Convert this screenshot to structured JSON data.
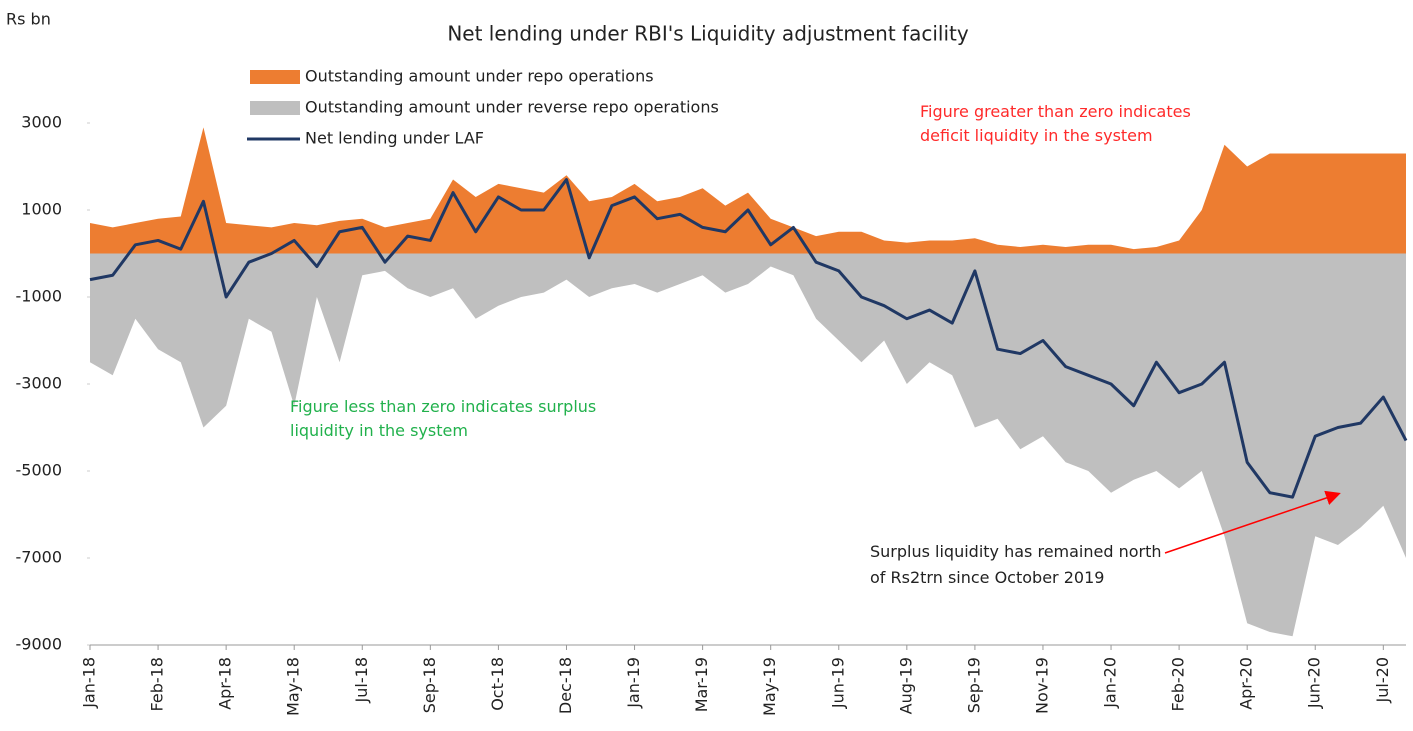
{
  "chart_data": {
    "type": "area-line",
    "title": "Net lending under RBI's Liquidity  adjustment facility",
    "y_label": "Rs bn",
    "categories": [
      "Jan-18",
      null,
      null,
      "Feb-18",
      null,
      null,
      "Apr-18",
      null,
      null,
      "May-18",
      null,
      null,
      "Jul-18",
      null,
      null,
      "Sep-18",
      null,
      null,
      "Oct-18",
      null,
      null,
      "Dec-18",
      null,
      null,
      "Jan-19",
      null,
      null,
      "Mar-19",
      null,
      null,
      "May-19",
      null,
      null,
      "Jun-19",
      null,
      null,
      "Aug-19",
      null,
      null,
      "Sep-19",
      null,
      null,
      "Nov-19",
      null,
      null,
      "Jan-20",
      null,
      null,
      "Feb-20",
      null,
      null,
      "Apr-20",
      null,
      null,
      "Jun-20",
      null,
      null,
      "Jul-20",
      null
    ],
    "series": [
      {
        "name": "Outstanding amount under repo operations",
        "color": "#ed7d31",
        "kind": "area",
        "values": [
          700,
          600,
          700,
          800,
          850,
          2900,
          700,
          650,
          600,
          700,
          650,
          750,
          800,
          600,
          700,
          800,
          1700,
          1300,
          1600,
          1500,
          1400,
          1800,
          1200,
          1300,
          1600,
          1200,
          1300,
          1500,
          1100,
          1400,
          800,
          600,
          400,
          500,
          500,
          300,
          250,
          300,
          300,
          350,
          200,
          150,
          200,
          150,
          200,
          200,
          100,
          150,
          300,
          1000,
          2500,
          2000,
          2300,
          2300,
          2300,
          2300,
          2300,
          2300,
          2300
        ]
      },
      {
        "name": "Outstanding amount under reverse repo operations",
        "color": "#bfbfbf",
        "kind": "area",
        "values": [
          -2500,
          -2800,
          -1500,
          -2200,
          -2500,
          -4000,
          -3500,
          -1500,
          -1800,
          -3500,
          -1000,
          -2500,
          -500,
          -400,
          -800,
          -1000,
          -800,
          -1500,
          -1200,
          -1000,
          -900,
          -600,
          -1000,
          -800,
          -700,
          -900,
          -700,
          -500,
          -900,
          -700,
          -300,
          -500,
          -1500,
          -2000,
          -2500,
          -2000,
          -3000,
          -2500,
          -2800,
          -4000,
          -3800,
          -4500,
          -4200,
          -4800,
          -5000,
          -5500,
          -5200,
          -5000,
          -5400,
          -5000,
          -6500,
          -8500,
          -8700,
          -8800,
          -6500,
          -6700,
          -6300,
          -5800,
          -7000
        ]
      },
      {
        "name": "Net lending under LAF",
        "color": "#203864",
        "kind": "line",
        "values": [
          -600,
          -500,
          200,
          300,
          100,
          1200,
          -1000,
          -200,
          0,
          300,
          -300,
          500,
          600,
          -200,
          400,
          300,
          1400,
          500,
          1300,
          1000,
          1000,
          1700,
          -100,
          1100,
          1300,
          800,
          900,
          600,
          500,
          1000,
          200,
          600,
          -200,
          -400,
          -1000,
          -1200,
          -1500,
          -1300,
          -1600,
          -400,
          -2200,
          -2300,
          -2000,
          -2600,
          -2800,
          -3000,
          -3500,
          -2500,
          -3200,
          -3000,
          -2500,
          -4800,
          -5500,
          -5600,
          -4200,
          -4000,
          -3900,
          -3300,
          -4300
        ]
      }
    ],
    "ylim": [
      -9000,
      3000
    ],
    "yticks": [
      3000,
      1000,
      -1000,
      -3000,
      -5000,
      -7000,
      -9000
    ],
    "annotations": [
      "Figure greater than zero indicates deficit liquidity in the system",
      "Figure less than zero indicates surplus liquidity in the system",
      "Surplus liquidity has remained north of Rs2trn since October 2019"
    ]
  }
}
